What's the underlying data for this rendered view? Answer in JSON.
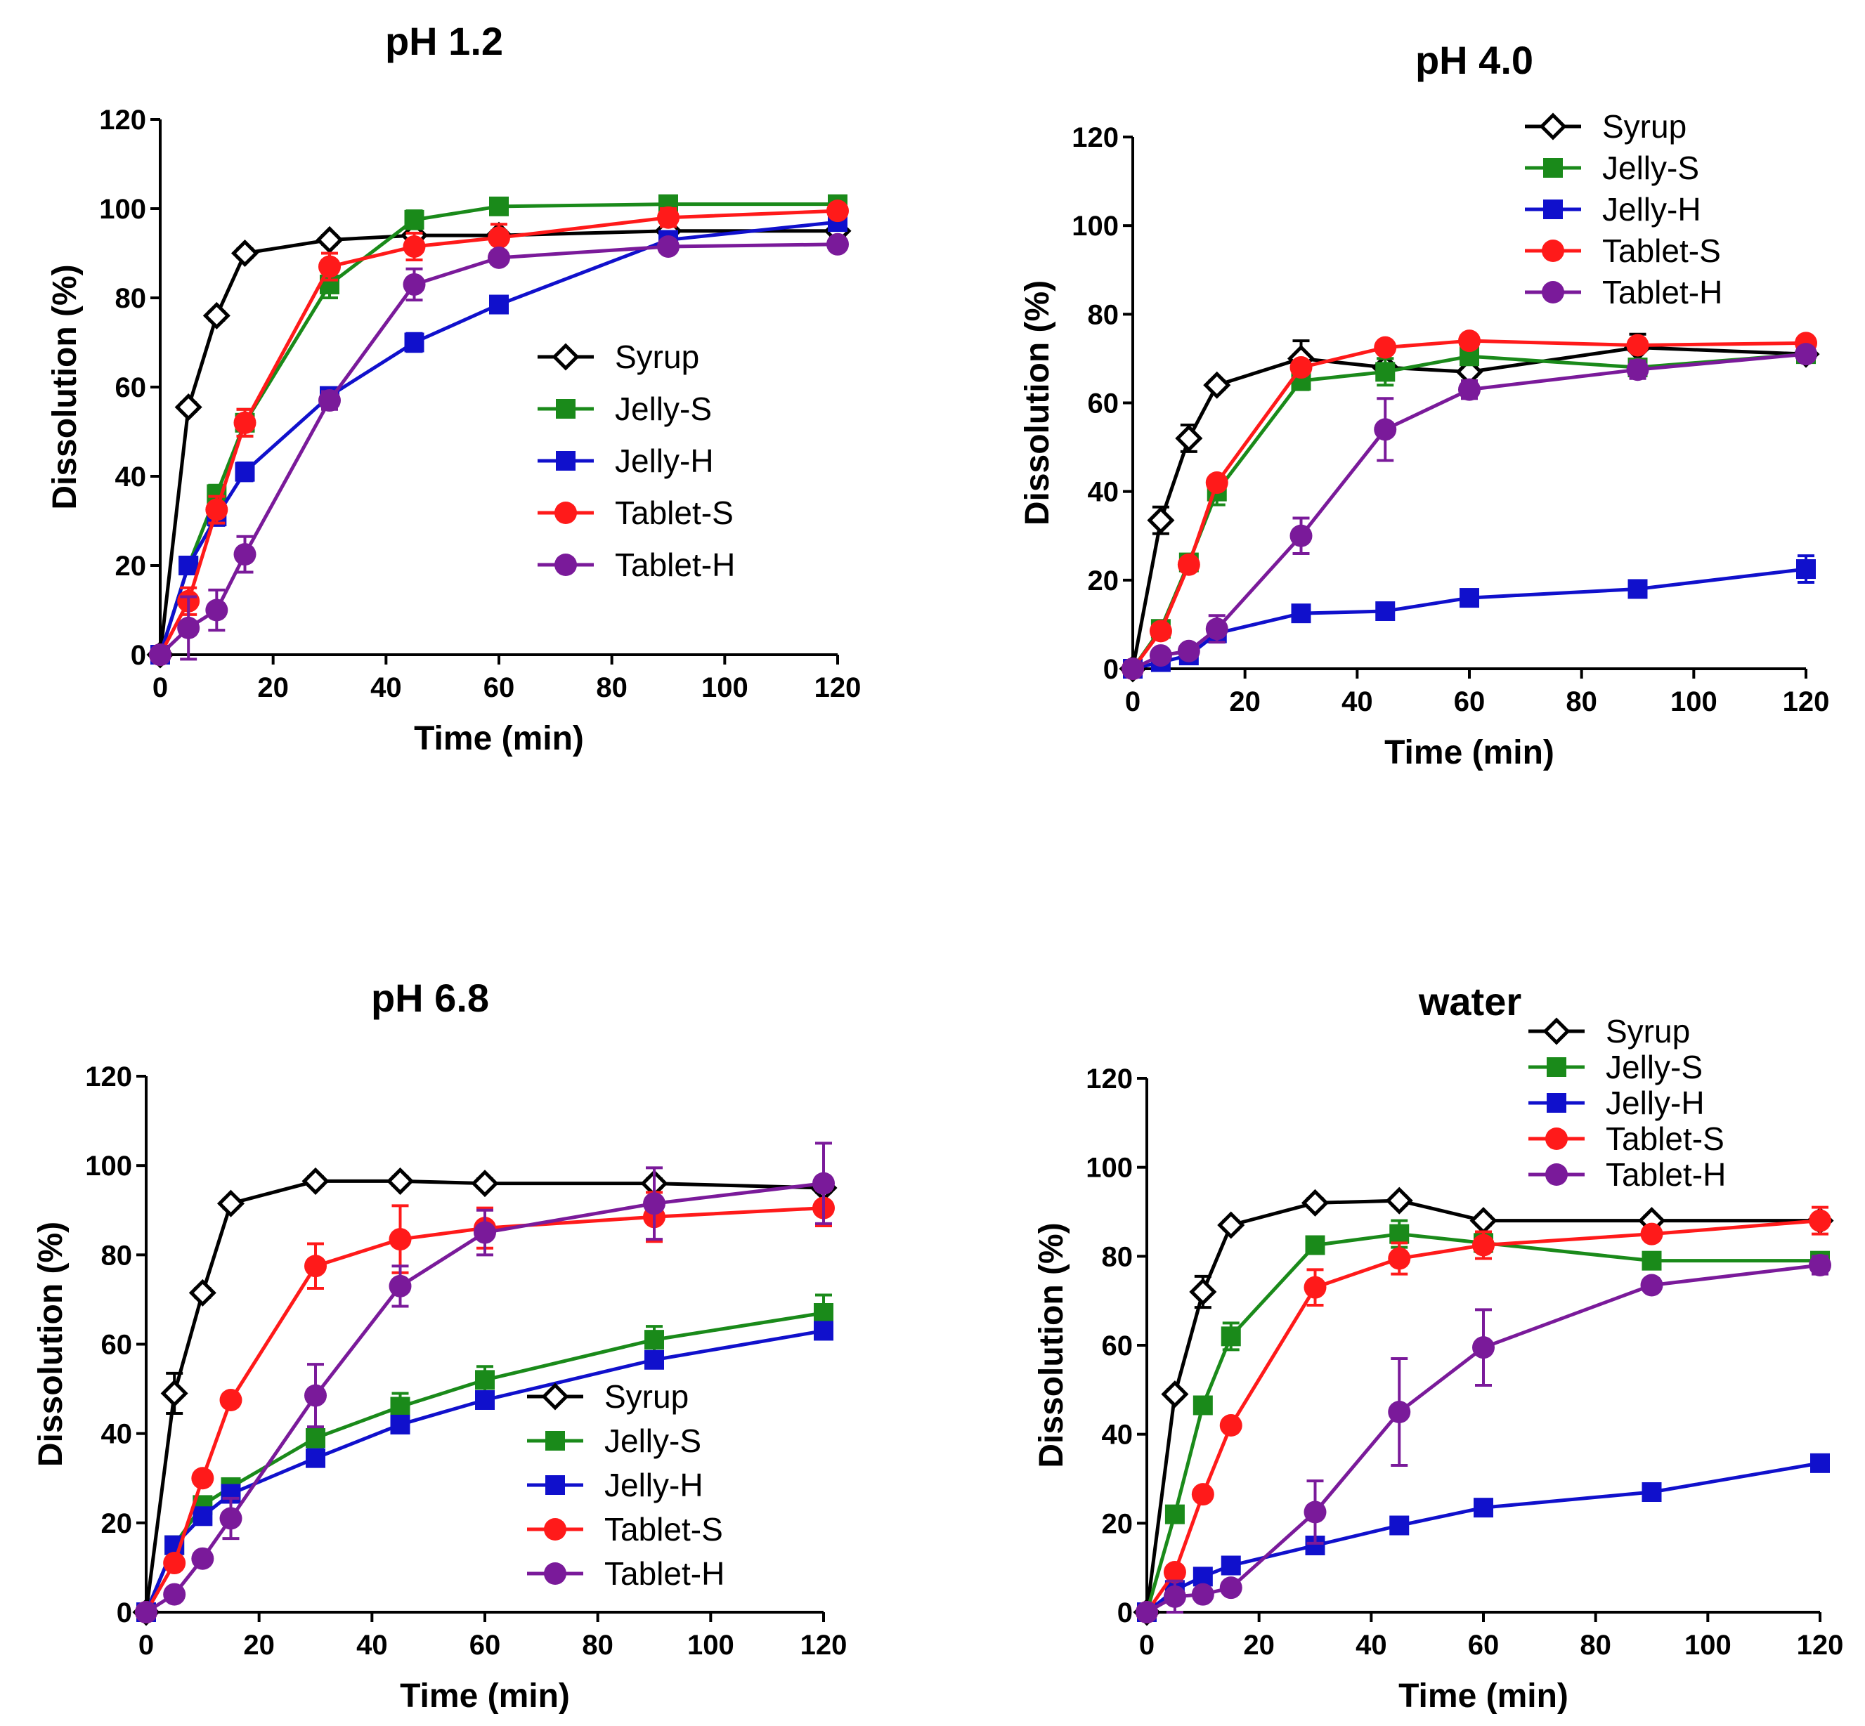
{
  "figure": {
    "series_styles": {
      "Syrup": {
        "color": "#000000",
        "marker": "diamond-open"
      },
      "Jelly-S": {
        "color": "#1a8a1a",
        "marker": "square"
      },
      "Jelly-H": {
        "color": "#1010cc",
        "marker": "square"
      },
      "Tablet-S": {
        "color": "#ff1a1a",
        "marker": "circle"
      },
      "Tablet-H": {
        "color": "#7a1a9a",
        "marker": "circle"
      }
    }
  },
  "chart_data": [
    {
      "type": "line",
      "title": "pH 1.2",
      "xlabel": "Time (min)",
      "ylabel": "Dissolution (%)",
      "xlim": [
        0,
        120
      ],
      "ylim": [
        0,
        120
      ],
      "xticks": [
        0,
        20,
        40,
        60,
        80,
        100,
        120
      ],
      "yticks": [
        0,
        20,
        40,
        60,
        80,
        100,
        120
      ],
      "legend_position": "middle-right",
      "x": [
        0,
        5,
        10,
        15,
        30,
        45,
        60,
        90,
        120
      ],
      "series": [
        {
          "name": "Syrup",
          "values": [
            0,
            55.5,
            76,
            90,
            93,
            94,
            94,
            95,
            95
          ],
          "errors": [
            0,
            1,
            1,
            1,
            1,
            1,
            1,
            1,
            1
          ]
        },
        {
          "name": "Jelly-S",
          "values": [
            0,
            20,
            36,
            52,
            83,
            97.5,
            100.5,
            101,
            101
          ],
          "errors": [
            0,
            1,
            2,
            3,
            3,
            2,
            1,
            1,
            1
          ]
        },
        {
          "name": "Jelly-H",
          "values": [
            0,
            20,
            31,
            41,
            58,
            70,
            78.5,
            93,
            97
          ],
          "errors": [
            0,
            1,
            2,
            2,
            1,
            2,
            1,
            1,
            1
          ]
        },
        {
          "name": "Tablet-S",
          "values": [
            0,
            12,
            32.5,
            52,
            87,
            91.5,
            93.5,
            98,
            99.5
          ],
          "errors": [
            0,
            3,
            3,
            3,
            3,
            3,
            3,
            2,
            1
          ]
        },
        {
          "name": "Tablet-H",
          "values": [
            0,
            6,
            10,
            22.5,
            57,
            83,
            89,
            91.5,
            92
          ],
          "errors": [
            0,
            7,
            4.5,
            4,
            2,
            3.5,
            1,
            1,
            1
          ]
        }
      ]
    },
    {
      "type": "line",
      "title": "pH 4.0",
      "xlabel": "Time (min)",
      "ylabel": "Dissolution (%)",
      "xlim": [
        0,
        120
      ],
      "ylim": [
        0,
        120
      ],
      "xticks": [
        0,
        20,
        40,
        60,
        80,
        100,
        120
      ],
      "yticks": [
        0,
        20,
        40,
        60,
        80,
        100,
        120
      ],
      "legend_position": "top-right",
      "x": [
        0,
        5,
        10,
        15,
        30,
        45,
        60,
        90,
        120
      ],
      "series": [
        {
          "name": "Syrup",
          "values": [
            0,
            33.5,
            52,
            64,
            70,
            68,
            67,
            72.5,
            71
          ],
          "errors": [
            0,
            3,
            3,
            1,
            4,
            2,
            1,
            3,
            1
          ]
        },
        {
          "name": "Jelly-S",
          "values": [
            0,
            9,
            24,
            40,
            65,
            67,
            70.5,
            68,
            71
          ],
          "errors": [
            0,
            1,
            1,
            3,
            2,
            3,
            1,
            1,
            1
          ]
        },
        {
          "name": "Jelly-H",
          "values": [
            0,
            1.5,
            3,
            8,
            12.5,
            13,
            16,
            18,
            22.5
          ],
          "errors": [
            0,
            0.5,
            0.5,
            1,
            1,
            1,
            1,
            1,
            3
          ]
        },
        {
          "name": "Tablet-S",
          "values": [
            0,
            8.5,
            23.5,
            42,
            68,
            72.5,
            74,
            73,
            73.5
          ],
          "errors": [
            0,
            1,
            1,
            1,
            1,
            1,
            1,
            1,
            1
          ]
        },
        {
          "name": "Tablet-H",
          "values": [
            0,
            3,
            4,
            9,
            30,
            54,
            63,
            67.5,
            71
          ],
          "errors": [
            0,
            1,
            1,
            3,
            4,
            7,
            2,
            2,
            1
          ]
        }
      ]
    },
    {
      "type": "line",
      "title": "pH 6.8",
      "xlabel": "Time (min)",
      "ylabel": "Dissolution (%)",
      "xlim": [
        0,
        120
      ],
      "ylim": [
        0,
        120
      ],
      "xticks": [
        0,
        20,
        40,
        60,
        80,
        100,
        120
      ],
      "yticks": [
        0,
        20,
        40,
        60,
        80,
        100,
        120
      ],
      "legend_position": "bottom-right",
      "x": [
        0,
        5,
        10,
        15,
        30,
        45,
        60,
        90,
        120
      ],
      "series": [
        {
          "name": "Syrup",
          "values": [
            0,
            49,
            71.5,
            91.5,
            96.5,
            96.5,
            96,
            96,
            95
          ],
          "errors": [
            0,
            4.5,
            1,
            1,
            1,
            1,
            1,
            1,
            1
          ]
        },
        {
          "name": "Jelly-S",
          "values": [
            0,
            15,
            24,
            28,
            39,
            46,
            52,
            61,
            67
          ],
          "errors": [
            0,
            1,
            1,
            1,
            2,
            3,
            3,
            3,
            4
          ]
        },
        {
          "name": "Jelly-H",
          "values": [
            0,
            15,
            21.5,
            26.5,
            34.5,
            42,
            47.5,
            56.5,
            63
          ],
          "errors": [
            0,
            1,
            1,
            1,
            1,
            1,
            1,
            1,
            1
          ]
        },
        {
          "name": "Tablet-S",
          "values": [
            0,
            11,
            30,
            47.5,
            77.5,
            83.5,
            86,
            88.5,
            90.5
          ],
          "errors": [
            0,
            1,
            1,
            1,
            5,
            7.5,
            4.5,
            5.5,
            4
          ]
        },
        {
          "name": "Tablet-H",
          "values": [
            0,
            4,
            12,
            21,
            48.5,
            73,
            85,
            91.5,
            96
          ],
          "errors": [
            0,
            1,
            1,
            4.5,
            7,
            4.5,
            5,
            8,
            9
          ]
        }
      ]
    },
    {
      "type": "line",
      "title": "water",
      "xlabel": "Time (min)",
      "ylabel": "Dissolution (%)",
      "xlim": [
        0,
        120
      ],
      "ylim": [
        0,
        120
      ],
      "xticks": [
        0,
        20,
        40,
        60,
        80,
        100,
        120
      ],
      "yticks": [
        0,
        20,
        40,
        60,
        80,
        100,
        120
      ],
      "legend_position": "top-right",
      "x": [
        0,
        5,
        10,
        15,
        30,
        45,
        60,
        90,
        120
      ],
      "series": [
        {
          "name": "Syrup",
          "values": [
            0,
            49,
            72,
            87,
            92,
            92.5,
            88,
            88,
            88
          ],
          "errors": [
            0,
            1,
            3.5,
            1,
            1,
            1,
            1,
            1,
            1
          ]
        },
        {
          "name": "Jelly-S",
          "values": [
            0,
            22,
            46.5,
            62,
            82.5,
            85,
            83,
            79,
            79
          ],
          "errors": [
            0,
            1,
            1,
            3,
            1,
            3,
            2,
            1,
            1
          ]
        },
        {
          "name": "Jelly-H",
          "values": [
            0,
            5,
            8,
            10.5,
            15,
            19.5,
            23.5,
            27,
            33.5
          ],
          "errors": [
            0,
            1,
            1,
            1,
            1,
            1,
            1,
            1,
            1
          ]
        },
        {
          "name": "Tablet-S",
          "values": [
            0,
            9,
            26.5,
            42,
            73,
            79.5,
            82.5,
            85,
            88
          ],
          "errors": [
            0,
            1,
            1,
            1,
            4,
            3.5,
            3,
            1,
            3
          ]
        },
        {
          "name": "Tablet-H",
          "values": [
            0,
            3.5,
            4,
            5.5,
            22.5,
            45,
            59.5,
            73.5,
            78
          ],
          "errors": [
            0,
            3.5,
            1,
            1,
            7,
            12,
            8.5,
            1,
            2
          ]
        }
      ]
    }
  ]
}
